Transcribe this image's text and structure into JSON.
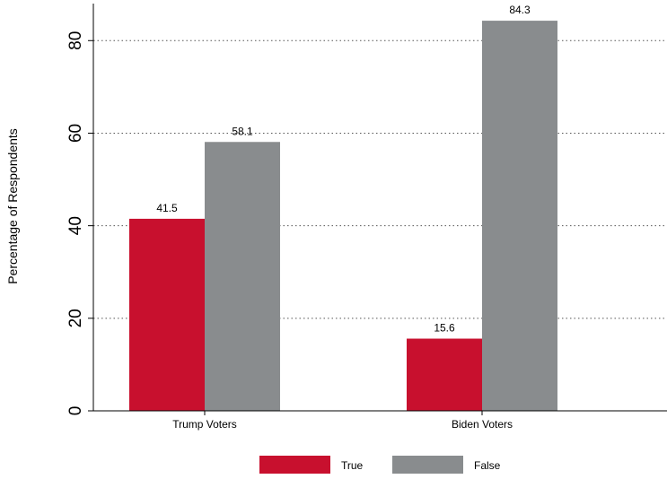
{
  "chart_data": {
    "type": "bar",
    "title": "",
    "xlabel": "",
    "ylabel": "Percentage of Respondents",
    "categories": [
      "Trump Voters",
      "Biden Voters"
    ],
    "series": [
      {
        "name": "True",
        "values": [
          41.5,
          15.6
        ],
        "color": "#c8102e"
      },
      {
        "name": "False",
        "values": [
          58.1,
          84.3
        ],
        "color": "#898c8e"
      }
    ],
    "ylim": [
      0,
      88
    ],
    "yticks": [
      0,
      20,
      40,
      60,
      80
    ],
    "grid": true,
    "legend_position": "bottom"
  }
}
